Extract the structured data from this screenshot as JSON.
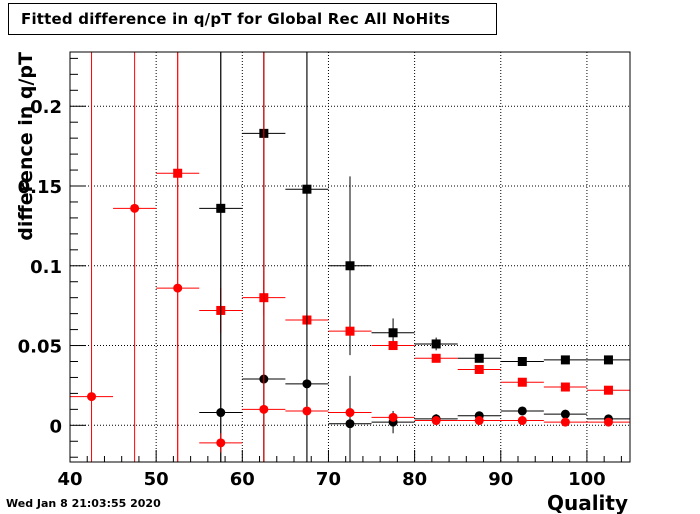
{
  "timestamp": "Wed Jan  8 21:03:55 2020",
  "chart_data": {
    "type": "scatter",
    "title": "Fitted difference in q/pT for Global Rec All NoHits",
    "xlabel": "Quality",
    "ylabel": "difference in q/pT",
    "xlim": [
      40,
      105
    ],
    "ylim": [
      -0.023,
      0.234
    ],
    "x_ticks": [
      40,
      50,
      60,
      70,
      80,
      90,
      100
    ],
    "x_tick_labels": [
      "40",
      "50",
      "60",
      "70",
      "80",
      "90",
      "100"
    ],
    "y_ticks": [
      0,
      0.05,
      0.1,
      0.15,
      0.2
    ],
    "y_tick_labels": [
      "0",
      "0.05",
      "0.1",
      "0.15",
      "0.2"
    ],
    "grid": true,
    "series": [
      {
        "color": "#000000",
        "marker": "square",
        "points": [
          {
            "x": 57.5,
            "y": 0.136,
            "err": 0.3
          },
          {
            "x": 62.5,
            "y": 0.183,
            "err": 0.3
          },
          {
            "x": 67.5,
            "y": 0.148,
            "err": 0.3
          },
          {
            "x": 72.5,
            "y": 0.1,
            "err": 0.056
          },
          {
            "x": 77.5,
            "y": 0.058,
            "err": 0.009
          },
          {
            "x": 82.5,
            "y": 0.051,
            "err": 0.004
          },
          {
            "x": 87.5,
            "y": 0.042,
            "err": 0.002
          },
          {
            "x": 92.5,
            "y": 0.04,
            "err": 0.002
          },
          {
            "x": 97.5,
            "y": 0.041,
            "err": 0.002
          },
          {
            "x": 102.5,
            "y": 0.041,
            "err": 0.002
          }
        ]
      },
      {
        "color": "#ff0000",
        "marker": "square",
        "points": [
          {
            "x": 52.5,
            "y": 0.158,
            "err": 0.3
          },
          {
            "x": 57.5,
            "y": 0.072,
            "err": 0.014
          },
          {
            "x": 62.5,
            "y": 0.08,
            "err": 0.011
          },
          {
            "x": 67.5,
            "y": 0.066,
            "err": 0.004
          },
          {
            "x": 72.5,
            "y": 0.059,
            "err": 0.002
          },
          {
            "x": 77.5,
            "y": 0.05,
            "err": 0.002
          },
          {
            "x": 82.5,
            "y": 0.042,
            "err": 0.001
          },
          {
            "x": 87.5,
            "y": 0.035,
            "err": 0.001
          },
          {
            "x": 92.5,
            "y": 0.027,
            "err": 0.001
          },
          {
            "x": 97.5,
            "y": 0.024,
            "err": 0.001
          },
          {
            "x": 102.5,
            "y": 0.022,
            "err": 0.001
          }
        ]
      },
      {
        "color": "#000000",
        "marker": "circle",
        "points": [
          {
            "x": 57.5,
            "y": 0.008,
            "err": 0.3
          },
          {
            "x": 62.5,
            "y": 0.029,
            "err": 0.3
          },
          {
            "x": 67.5,
            "y": 0.026,
            "err": 0.3
          },
          {
            "x": 72.5,
            "y": 0.001,
            "err": 0.03
          },
          {
            "x": 77.5,
            "y": 0.002,
            "err": 0.007
          },
          {
            "x": 82.5,
            "y": 0.004,
            "err": 0.003
          },
          {
            "x": 87.5,
            "y": 0.006,
            "err": 0.002
          },
          {
            "x": 92.5,
            "y": 0.009,
            "err": 0.002
          },
          {
            "x": 97.5,
            "y": 0.007,
            "err": 0.001
          },
          {
            "x": 102.5,
            "y": 0.004,
            "err": 0.001
          }
        ]
      },
      {
        "color": "#ff0000",
        "marker": "circle",
        "points": [
          {
            "x": 42.5,
            "y": 0.018,
            "err": 0.3
          },
          {
            "x": 47.5,
            "y": 0.136,
            "err": 0.3
          },
          {
            "x": 52.5,
            "y": 0.086,
            "err": 0.3
          },
          {
            "x": 57.5,
            "y": -0.011,
            "err": 0.006
          },
          {
            "x": 62.5,
            "y": 0.01,
            "err": 0.3
          },
          {
            "x": 67.5,
            "y": 0.009,
            "err": 0.002
          },
          {
            "x": 72.5,
            "y": 0.008,
            "err": 0.002
          },
          {
            "x": 77.5,
            "y": 0.005,
            "err": 0.001
          },
          {
            "x": 82.5,
            "y": 0.003,
            "err": 0.001
          },
          {
            "x": 87.5,
            "y": 0.003,
            "err": 0.001
          },
          {
            "x": 92.5,
            "y": 0.003,
            "err": 0.001
          },
          {
            "x": 97.5,
            "y": 0.002,
            "err": 0.001
          },
          {
            "x": 102.5,
            "y": 0.002,
            "err": 0.001
          }
        ]
      }
    ]
  }
}
